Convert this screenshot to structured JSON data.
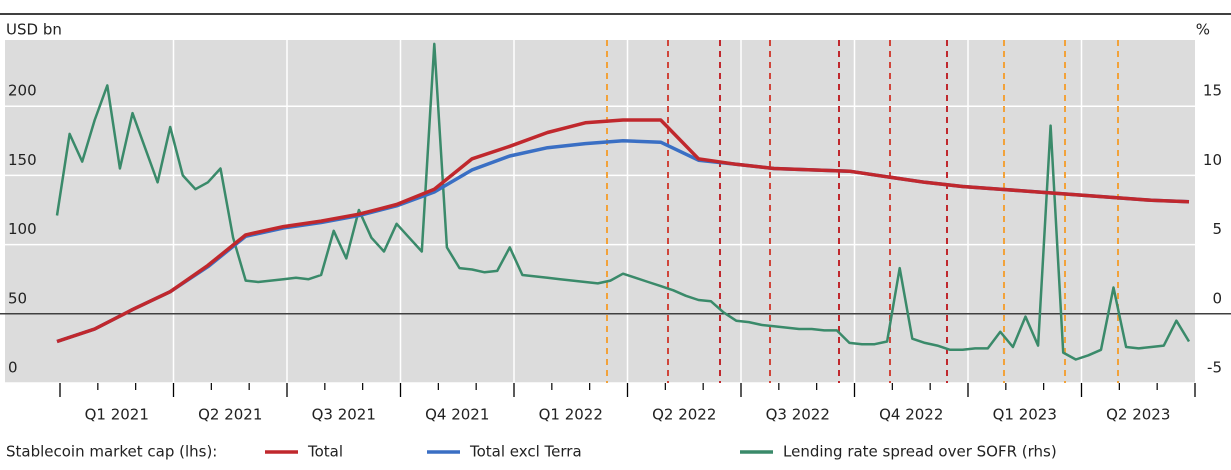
{
  "chart_data": {
    "type": "line",
    "ylabel": "USD bn",
    "y2label": "%",
    "x_labels": [
      "Q1 2021",
      "Q2 2021",
      "Q3 2021",
      "Q4 2021",
      "Q1 2022",
      "Q2 2022",
      "Q3 2022",
      "Q4 2022",
      "Q1 2023",
      "Q2 2023"
    ],
    "ylim": [
      0,
      250
    ],
    "yticks": [
      0,
      50,
      100,
      150,
      200
    ],
    "y2lim": [
      -5,
      20
    ],
    "y2ticks": [
      -5,
      0,
      5,
      10,
      15
    ],
    "grid": true,
    "legend_title": "Stablecoin market cap (lhs):",
    "legend_position": "bottom",
    "series": [
      {
        "name": "Total",
        "color": "#c0282d",
        "axis": "y",
        "values": [
          30,
          39,
          53,
          66,
          85,
          107,
          113,
          117,
          122,
          129,
          140,
          162,
          171,
          181,
          188,
          190,
          190,
          162,
          158,
          155,
          154,
          153,
          149,
          145,
          142,
          140,
          138,
          136,
          134,
          132,
          131
        ]
      },
      {
        "name": "Total excl Terra",
        "color": "#3a6fc4",
        "axis": "y",
        "values": [
          30,
          39,
          53,
          66,
          84,
          106,
          112,
          116,
          121,
          128,
          138,
          154,
          164,
          170,
          173,
          175,
          174,
          161,
          158,
          155,
          154,
          153,
          149,
          145,
          142,
          140,
          138,
          136,
          134,
          132,
          131
        ]
      },
      {
        "name": "Lending rate spread over SOFR (rhs)",
        "color": "#3a8a6a",
        "axis": "y2",
        "values": [
          7.1,
          13,
          11,
          14,
          16.5,
          10.5,
          14.5,
          12,
          9.5,
          13.5,
          10,
          9,
          9.5,
          10.5,
          5.5,
          2.4,
          2.3,
          2.4,
          2.5,
          2.6,
          2.5,
          2.8,
          6,
          4,
          7.5,
          5.5,
          4.5,
          6.5,
          5.5,
          4.5,
          19.5,
          4.8,
          3.3,
          3.2,
          3,
          3.1,
          4.8,
          2.8,
          2.7,
          2.6,
          2.5,
          2.4,
          2.3,
          2.2,
          2.4,
          2.9,
          2.6,
          2.3,
          2,
          1.7,
          1.3,
          1,
          0.9,
          0.1,
          -0.5,
          -0.6,
          -0.8,
          -0.9,
          -1,
          -1.1,
          -1.1,
          -1.2,
          -1.2,
          -2.1,
          -2.2,
          -2.2,
          -2,
          3.3,
          -1.8,
          -2.1,
          -2.3,
          -2.6,
          -2.6,
          -2.5,
          -2.5,
          -1.3,
          -2.4,
          -0.2,
          -2.3,
          13.6,
          -2.8,
          -3.3,
          -3,
          -2.6,
          1.9,
          -2.4,
          -2.5,
          -2.4,
          -2.3,
          -0.5,
          -2
        ]
      }
    ]
  }
}
